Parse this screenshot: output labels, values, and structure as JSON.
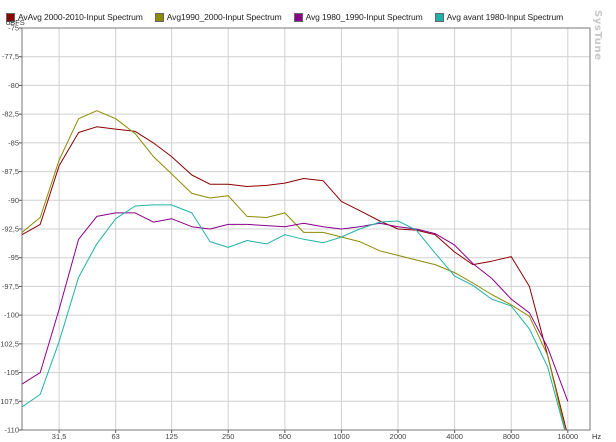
{
  "brand": "SysTune",
  "chart_data": {
    "type": "line",
    "ylabel": "dBFS",
    "xlabel": "Hz",
    "x_scale": "log",
    "xlim": [
      20,
      21000
    ],
    "ylim": [
      -110,
      -75
    ],
    "x_ticks": [
      31.5,
      63,
      125,
      250,
      500,
      1000,
      2000,
      4000,
      8000,
      16000
    ],
    "x_tick_labels": [
      "31,5",
      "63",
      "125",
      "250",
      "500",
      "1000",
      "2000",
      "4000",
      "8000",
      "16000"
    ],
    "y_ticks": [
      -75,
      -77.5,
      -80,
      -82.5,
      -85,
      -87.5,
      -90,
      -92.5,
      -95,
      -97.5,
      -100,
      -102.5,
      -105,
      -107.5,
      -110
    ],
    "y_tick_labels": [
      "-75",
      "-77,5",
      "-80",
      "-82,5",
      "-85",
      "-87,5",
      "-90",
      "-92,5",
      "-95",
      "-97,5",
      "-100",
      "-102,5",
      "-105",
      "-107,5",
      "-110"
    ],
    "grid": true,
    "legend_position": "top",
    "series": [
      {
        "name": "AvAvg 2000-2010-Input Spectrum",
        "color": "#8b0000",
        "points": [
          [
            20,
            -93.0
          ],
          [
            25,
            -92.1
          ],
          [
            31.5,
            -87.0
          ],
          [
            40,
            -84.1
          ],
          [
            50,
            -83.6
          ],
          [
            63,
            -83.8
          ],
          [
            80,
            -84.0
          ],
          [
            100,
            -85.0
          ],
          [
            125,
            -86.2
          ],
          [
            160,
            -87.8
          ],
          [
            200,
            -88.6
          ],
          [
            250,
            -88.6
          ],
          [
            315,
            -88.8
          ],
          [
            400,
            -88.7
          ],
          [
            500,
            -88.5
          ],
          [
            630,
            -88.1
          ],
          [
            800,
            -88.3
          ],
          [
            1000,
            -90.1
          ],
          [
            1250,
            -90.9
          ],
          [
            1600,
            -91.8
          ],
          [
            2000,
            -92.5
          ],
          [
            2500,
            -92.6
          ],
          [
            3150,
            -93.0
          ],
          [
            4000,
            -94.5
          ],
          [
            5000,
            -95.6
          ],
          [
            6300,
            -95.3
          ],
          [
            8000,
            -94.9
          ],
          [
            10000,
            -97.5
          ],
          [
            12500,
            -103.5
          ],
          [
            16000,
            -110.5
          ]
        ]
      },
      {
        "name": "Avg1990_2000-Input Spectrum",
        "color": "#8b8b00",
        "points": [
          [
            20,
            -92.8
          ],
          [
            25,
            -91.5
          ],
          [
            31.5,
            -86.5
          ],
          [
            40,
            -82.9
          ],
          [
            50,
            -82.2
          ],
          [
            63,
            -82.9
          ],
          [
            80,
            -84.2
          ],
          [
            100,
            -86.2
          ],
          [
            125,
            -87.7
          ],
          [
            160,
            -89.4
          ],
          [
            200,
            -89.8
          ],
          [
            250,
            -89.6
          ],
          [
            315,
            -91.4
          ],
          [
            400,
            -91.5
          ],
          [
            500,
            -91.1
          ],
          [
            630,
            -92.8
          ],
          [
            800,
            -92.8
          ],
          [
            1000,
            -93.2
          ],
          [
            1250,
            -93.6
          ],
          [
            1600,
            -94.4
          ],
          [
            2000,
            -94.8
          ],
          [
            2500,
            -95.2
          ],
          [
            3150,
            -95.6
          ],
          [
            4000,
            -96.3
          ],
          [
            5000,
            -97.2
          ],
          [
            6300,
            -98.2
          ],
          [
            8000,
            -99.1
          ],
          [
            10000,
            -100.1
          ],
          [
            12500,
            -103.5
          ],
          [
            16000,
            -111.0
          ]
        ]
      },
      {
        "name": "Avg 1980_1990-Input Spectrum",
        "color": "#8b008b",
        "points": [
          [
            20,
            -106.0
          ],
          [
            25,
            -105.0
          ],
          [
            31.5,
            -99.5
          ],
          [
            40,
            -93.4
          ],
          [
            50,
            -91.4
          ],
          [
            63,
            -91.1
          ],
          [
            80,
            -91.1
          ],
          [
            100,
            -91.9
          ],
          [
            125,
            -91.6
          ],
          [
            160,
            -92.3
          ],
          [
            200,
            -92.5
          ],
          [
            250,
            -92.1
          ],
          [
            315,
            -92.1
          ],
          [
            400,
            -92.2
          ],
          [
            500,
            -92.3
          ],
          [
            630,
            -92.0
          ],
          [
            800,
            -92.3
          ],
          [
            1000,
            -92.5
          ],
          [
            1250,
            -92.3
          ],
          [
            1600,
            -92.0
          ],
          [
            2000,
            -92.3
          ],
          [
            2500,
            -92.5
          ],
          [
            3150,
            -92.9
          ],
          [
            4000,
            -93.9
          ],
          [
            5000,
            -95.5
          ],
          [
            6300,
            -96.8
          ],
          [
            8000,
            -98.6
          ],
          [
            10000,
            -99.8
          ],
          [
            12500,
            -102.8
          ],
          [
            16000,
            -107.5
          ]
        ]
      },
      {
        "name": "Avg avant 1980-Input Spectrum",
        "color": "#20b2aa",
        "points": [
          [
            20,
            -108.0
          ],
          [
            25,
            -106.9
          ],
          [
            31.5,
            -102.3
          ],
          [
            40,
            -96.7
          ],
          [
            50,
            -93.8
          ],
          [
            63,
            -91.6
          ],
          [
            80,
            -90.5
          ],
          [
            100,
            -90.4
          ],
          [
            125,
            -90.4
          ],
          [
            160,
            -91.1
          ],
          [
            200,
            -93.6
          ],
          [
            250,
            -94.1
          ],
          [
            315,
            -93.5
          ],
          [
            400,
            -93.8
          ],
          [
            500,
            -93.0
          ],
          [
            630,
            -93.4
          ],
          [
            800,
            -93.7
          ],
          [
            1000,
            -93.2
          ],
          [
            1250,
            -92.5
          ],
          [
            1600,
            -91.9
          ],
          [
            2000,
            -91.8
          ],
          [
            2500,
            -92.6
          ],
          [
            3150,
            -94.6
          ],
          [
            4000,
            -96.6
          ],
          [
            5000,
            -97.4
          ],
          [
            6300,
            -98.6
          ],
          [
            8000,
            -99.2
          ],
          [
            10000,
            -101.2
          ],
          [
            12500,
            -104.5
          ],
          [
            16000,
            -111.0
          ]
        ]
      }
    ]
  }
}
